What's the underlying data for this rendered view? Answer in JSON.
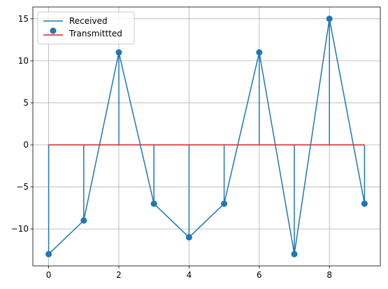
{
  "chart_data": {
    "type": "line",
    "x": [
      0,
      1,
      2,
      3,
      4,
      5,
      6,
      7,
      8,
      9
    ],
    "series": [
      {
        "name": "Received",
        "kind": "line",
        "color": "#1f77b4",
        "values": [
          -13,
          -9,
          11,
          -7,
          -11,
          -7,
          11,
          -13,
          15,
          -7
        ]
      },
      {
        "name": "Transmittted",
        "kind": "stem",
        "color": "#1f77b4",
        "baseline_color": "#d62728",
        "values": [
          -13,
          -9,
          11,
          -7,
          -11,
          -7,
          11,
          -13,
          15,
          -7
        ]
      }
    ],
    "xlim": [
      -0.45,
      9.45
    ],
    "ylim": [
      -14.4,
      16.4
    ],
    "xticks": [
      0,
      2,
      4,
      6,
      8
    ],
    "yticks": [
      -10,
      -5,
      0,
      5,
      10,
      15
    ],
    "xtick_labels": [
      "0",
      "2",
      "4",
      "6",
      "8"
    ],
    "ytick_labels": [
      "−10",
      "−5",
      "0",
      "5",
      "10",
      "15"
    ],
    "grid": true,
    "legend_position": "upper-left",
    "title": "",
    "xlabel": "",
    "ylabel": ""
  }
}
